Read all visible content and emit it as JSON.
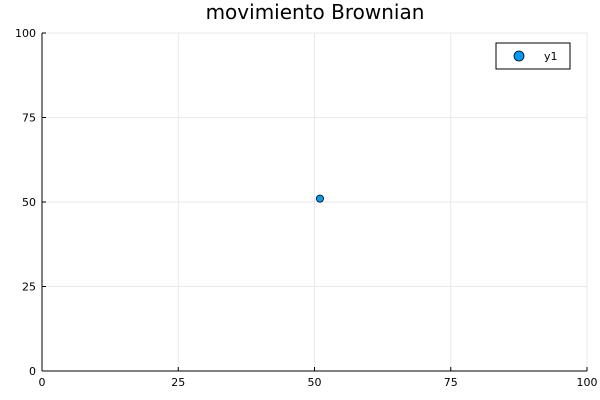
{
  "chart_data": {
    "type": "scatter",
    "title": "movimiento Brownian",
    "xlabel": "",
    "ylabel": "",
    "xlim": [
      0,
      100
    ],
    "ylim": [
      0,
      100
    ],
    "xticks": [
      0,
      25,
      50,
      75,
      100
    ],
    "yticks": [
      0,
      25,
      50,
      75,
      100
    ],
    "grid": true,
    "legend_position": "top-right",
    "series": [
      {
        "name": "y1",
        "color": "#009AFA",
        "x": [
          51
        ],
        "y": [
          51
        ]
      }
    ]
  }
}
